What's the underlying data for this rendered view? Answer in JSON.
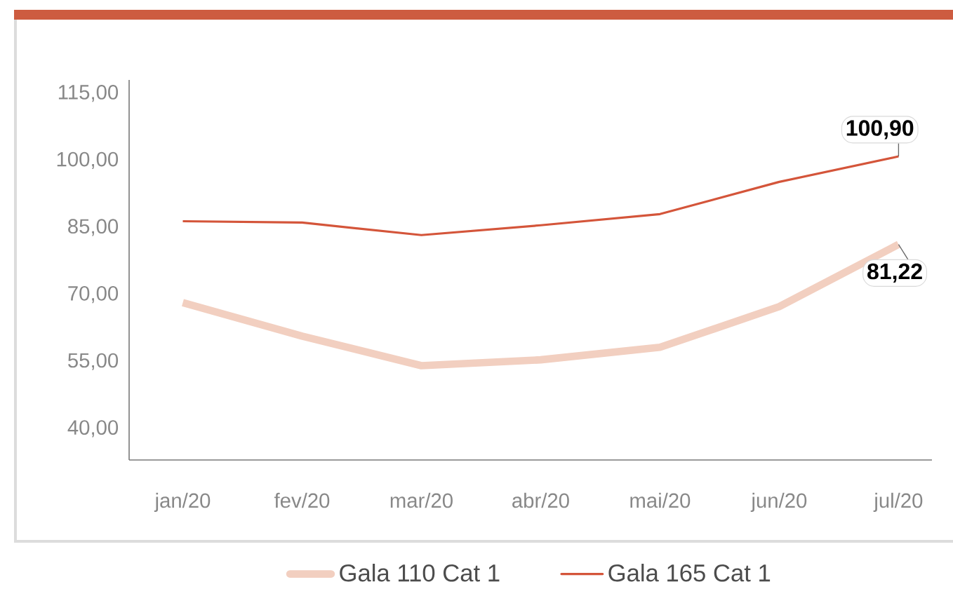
{
  "chart_data": {
    "type": "line",
    "categories": [
      "jan/20",
      "fev/20",
      "mar/20",
      "abr/20",
      "mai/20",
      "jun/20",
      "jul/20"
    ],
    "series": [
      {
        "name": "Gala 110 Cat 1",
        "color": "#f2cfc0",
        "values": [
          68.2,
          60.7,
          54.1,
          55.4,
          58.2,
          67.3,
          81.22
        ],
        "value_labels": [
          null,
          null,
          null,
          null,
          null,
          null,
          "81,22"
        ]
      },
      {
        "name": "Gala 165 Cat 1",
        "color": "#d4553a",
        "values": [
          86.4,
          86.1,
          83.3,
          85.5,
          88.0,
          95.2,
          100.9
        ],
        "value_labels": [
          null,
          null,
          null,
          null,
          null,
          null,
          "100,90"
        ]
      }
    ],
    "ylim": [
      33,
      118
    ],
    "yticks": [
      {
        "value": 40,
        "label": "40,00"
      },
      {
        "value": 55,
        "label": "55,00"
      },
      {
        "value": 70,
        "label": "70,00"
      },
      {
        "value": 85,
        "label": "85,00"
      },
      {
        "value": 100,
        "label": "100,00"
      },
      {
        "value": 115,
        "label": "115,00"
      }
    ],
    "grid": false,
    "legend": "bottom",
    "marker": "none",
    "line_style": "solid"
  }
}
